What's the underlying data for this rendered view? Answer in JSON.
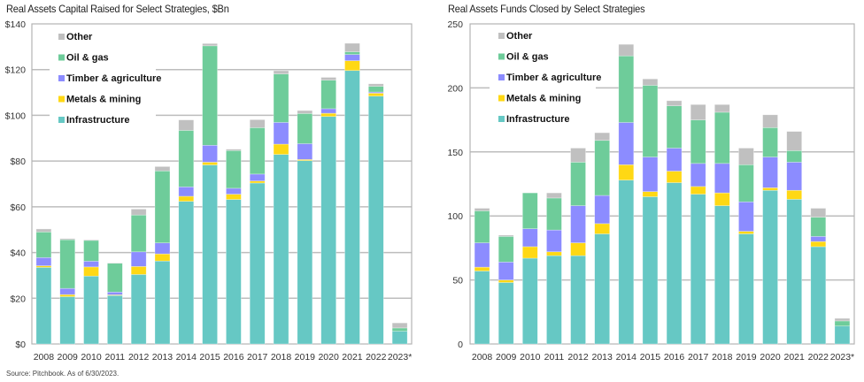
{
  "source_note": "Source: Pitchbook. As of 6/30/2023.",
  "colors": {
    "Infrastructure": "#66C8C4",
    "Metals & mining": "#FFD814",
    "Timber & agriculture": "#8C8CFF",
    "Oil & gas": "#6ECC9A",
    "Other": "#C0C0C0",
    "grid": "#BDBDBD",
    "frame": "#B3B3B3"
  },
  "chart_data": [
    {
      "type": "bar",
      "stacked": true,
      "title": "Real Assets Capital Raised for Select Strategies, $Bn",
      "xlabel": "",
      "ylabel": "",
      "ylim": [
        0,
        140
      ],
      "yticks": [
        0,
        20,
        40,
        60,
        80,
        100,
        120,
        140
      ],
      "ytick_labels": [
        "$0",
        "$20",
        "$40",
        "$60",
        "$80",
        "$100",
        "$120",
        "$140"
      ],
      "grid": true,
      "legend_position": "top-left",
      "legend": [
        "Other",
        "Oil & gas",
        "Timber & agriculture",
        "Metals & mining",
        "Infrastructure"
      ],
      "categories": [
        "2008",
        "2009",
        "2010",
        "2011",
        "2012",
        "2013",
        "2014",
        "2015",
        "2016",
        "2017",
        "2018",
        "2019",
        "2020",
        "2021",
        "2022",
        "2023*"
      ],
      "series": [
        {
          "name": "Infrastructure",
          "values": [
            33.5,
            20.7,
            29.7,
            21.2,
            30.4,
            36.3,
            62.4,
            78.3,
            63.2,
            70.4,
            82.9,
            80.2,
            99.5,
            119.6,
            108.4,
            5.6
          ]
        },
        {
          "name": "Metals & mining",
          "values": [
            0.7,
            0.9,
            4.0,
            0.3,
            3.5,
            3.1,
            2.2,
            1.2,
            2.3,
            0.9,
            4.5,
            0.5,
            1.4,
            4.3,
            1.3,
            0
          ]
        },
        {
          "name": "Timber & agriculture",
          "values": [
            3.6,
            2.7,
            2.5,
            1.2,
            6.4,
            4.8,
            4.1,
            7.4,
            2.6,
            3.0,
            9.5,
            6.9,
            2.0,
            2.7,
            0.5,
            0
          ]
        },
        {
          "name": "Oil & gas",
          "values": [
            11.2,
            21.3,
            9.1,
            12.6,
            16.1,
            31.5,
            24.7,
            43.5,
            16.5,
            20.3,
            21.2,
            13.2,
            12.5,
            1.2,
            2.5,
            1.4
          ]
        },
        {
          "name": "Other",
          "values": [
            1.3,
            0.5,
            0.3,
            0.2,
            2.6,
            1.9,
            4.6,
            1.0,
            0.6,
            3.5,
            1.4,
            1.3,
            1.2,
            3.7,
            1.1,
            2.2
          ]
        }
      ]
    },
    {
      "type": "bar",
      "stacked": true,
      "title": "Real Assets Funds Closed by Select Strategies",
      "xlabel": "",
      "ylabel": "",
      "ylim": [
        0,
        250
      ],
      "yticks": [
        0,
        50,
        100,
        150,
        200,
        250
      ],
      "ytick_labels": [
        "0",
        "50",
        "100",
        "150",
        "200",
        "250"
      ],
      "grid": true,
      "legend_position": "top-left",
      "legend": [
        "Other",
        "Oil & gas",
        "Timber & agriculture",
        "Metals & mining",
        "Infrastructure"
      ],
      "categories": [
        "2008",
        "2009",
        "2010",
        "2011",
        "2012",
        "2013",
        "2014",
        "2015",
        "2016",
        "2017",
        "2018",
        "2019",
        "2020",
        "2021",
        "2022",
        "2023*"
      ],
      "series": [
        {
          "name": "Infrastructure",
          "values": [
            57,
            48,
            67,
            69,
            69,
            86,
            128,
            115,
            126,
            117,
            108,
            86,
            120,
            113,
            76,
            14
          ]
        },
        {
          "name": "Metals & mining",
          "values": [
            3,
            2,
            9,
            3,
            10,
            8,
            12,
            4,
            9,
            6,
            10,
            2,
            2,
            7,
            4,
            0
          ]
        },
        {
          "name": "Timber & agriculture",
          "values": [
            19,
            14,
            14,
            17,
            29,
            22,
            33,
            27,
            18,
            18,
            23,
            23,
            24,
            22,
            4,
            0
          ]
        },
        {
          "name": "Oil & gas",
          "values": [
            25,
            20,
            28,
            25,
            34,
            43,
            52,
            56,
            33,
            34,
            40,
            29,
            23,
            9,
            15,
            4
          ]
        },
        {
          "name": "Other",
          "values": [
            2,
            1,
            0,
            4,
            11,
            6,
            9,
            5,
            4,
            12,
            6,
            13,
            10,
            15,
            7,
            2
          ]
        }
      ]
    }
  ]
}
